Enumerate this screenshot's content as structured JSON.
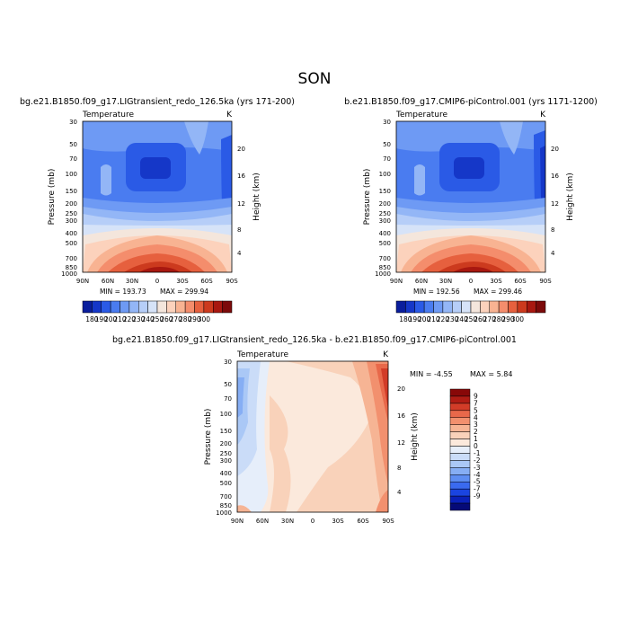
{
  "figure_title": "SON",
  "colors": {
    "abs_palette": [
      "#0a1e9c",
      "#1537c8",
      "#2a5ae6",
      "#4a7cf0",
      "#6e9af4",
      "#93b6f6",
      "#b6cef8",
      "#d6e3f8",
      "#f4e6dc",
      "#fcd2bc",
      "#f8b392",
      "#f48d6c",
      "#e6603e",
      "#cc3a1e",
      "#a81810",
      "#7c0a0a"
    ],
    "diff_palette": [
      "#050a78",
      "#0a20b8",
      "#1a44e0",
      "#3a6af0",
      "#5e8ef2",
      "#86aef4",
      "#aac8f6",
      "#cadcf8",
      "#e6eefa",
      "#fbe9dc",
      "#f9d2ba",
      "#f6b494",
      "#f2906e",
      "#e8684a",
      "#d23c28",
      "#b01c14",
      "#880808"
    ]
  },
  "chart_data": [
    {
      "type": "contour",
      "title": "bg.e21.B1850.f09_g17.LIGtransient_redo_126.5ka (yrs 171-200)",
      "variable": "Temperature",
      "units": "K",
      "ylabel": "Pressure (mb)",
      "y2label": "Height (km)",
      "x_ticks": [
        "90N",
        "60N",
        "30N",
        "0",
        "30S",
        "60S",
        "90S"
      ],
      "y_ticks": [
        "30",
        "50",
        "70",
        "100",
        "150",
        "200",
        "250",
        "300",
        "400",
        "500",
        "700",
        "850",
        "1000"
      ],
      "y2_ticks": [
        "20",
        "16",
        "12",
        "8",
        "4"
      ],
      "min_label": "MIN = 193.73",
      "max_label": "MAX = 299.94",
      "min": 193.73,
      "max": 299.94,
      "colorbar_labels": [
        "180",
        "190",
        "200",
        "210",
        "220",
        "230",
        "240",
        "250",
        "260",
        "270",
        "280",
        "290",
        "300"
      ]
    },
    {
      "type": "contour",
      "title": "b.e21.B1850.f09_g17.CMIP6-piControl.001 (yrs 1171-1200)",
      "variable": "Temperature",
      "units": "K",
      "ylabel": "Pressure (mb)",
      "y2label": "Height (km)",
      "x_ticks": [
        "90N",
        "60N",
        "30N",
        "0",
        "30S",
        "60S",
        "90S"
      ],
      "y_ticks": [
        "30",
        "50",
        "70",
        "100",
        "150",
        "200",
        "250",
        "300",
        "400",
        "500",
        "700",
        "850",
        "1000"
      ],
      "y2_ticks": [
        "20",
        "16",
        "12",
        "8",
        "4"
      ],
      "min_label": "MIN = 192.56",
      "max_label": "MAX = 299.46",
      "min": 192.56,
      "max": 299.46,
      "colorbar_labels": [
        "180",
        "190",
        "200",
        "210",
        "220",
        "230",
        "240",
        "250",
        "260",
        "270",
        "280",
        "290",
        "300"
      ]
    },
    {
      "type": "contour",
      "title": "bg.e21.B1850.f09_g17.LIGtransient_redo_126.5ka - b.e21.B1850.f09_g17.CMIP6-piControl.001",
      "variable": "Temperature",
      "units": "K",
      "ylabel": "Pressure (mb)",
      "y2label": "Height (km)",
      "x_ticks": [
        "90N",
        "60N",
        "30N",
        "0",
        "30S",
        "60S",
        "90S"
      ],
      "y_ticks": [
        "30",
        "50",
        "70",
        "100",
        "150",
        "200",
        "250",
        "300",
        "400",
        "500",
        "700",
        "850",
        "1000"
      ],
      "y2_ticks": [
        "20",
        "16",
        "12",
        "8",
        "4"
      ],
      "min_label": "MIN =  -4.55",
      "max_label": "MAX =  5.84",
      "min": -4.55,
      "max": 5.84,
      "colorbar_labels": [
        "9",
        "7",
        "5",
        "4",
        "3",
        "2",
        "1",
        "0",
        "-1",
        "-2",
        "-3",
        "-4",
        "-5",
        "-7",
        "-9"
      ]
    }
  ]
}
